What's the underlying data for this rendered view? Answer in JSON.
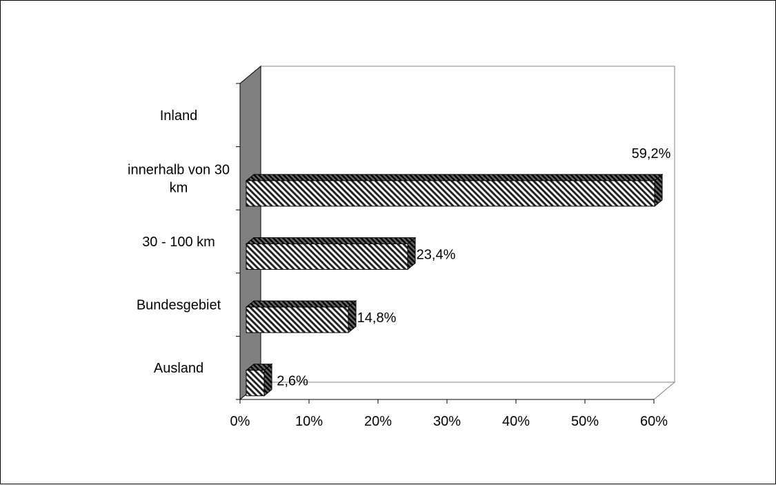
{
  "chart_data": {
    "type": "bar",
    "orientation": "horizontal",
    "style": "3d-hatched",
    "categories": [
      "Inland",
      "innerhalb von 30 km",
      "30 - 100 km",
      "Bundesgebiet",
      "Ausland"
    ],
    "category_label_lines": [
      [
        "Inland"
      ],
      [
        "innerhalb von 30",
        "km"
      ],
      [
        "30 - 100 km"
      ],
      [
        "Bundesgebiet"
      ],
      [
        "Ausland"
      ]
    ],
    "values": [
      null,
      59.2,
      23.4,
      14.8,
      2.6
    ],
    "data_labels": [
      "",
      "59,2%",
      "23,4%",
      "14,8%",
      "2,6%"
    ],
    "xlim": [
      0,
      60
    ],
    "xticks": [
      0,
      10,
      20,
      30,
      40,
      50,
      60
    ],
    "xtick_labels": [
      "0%",
      "10%",
      "20%",
      "30%",
      "40%",
      "50%",
      "60%"
    ],
    "grid": false,
    "legend": "none",
    "colors": {
      "bar_fill": "#ffffff",
      "hatch": "#000000",
      "side_wall": "#808080",
      "outline": "#000000"
    }
  }
}
